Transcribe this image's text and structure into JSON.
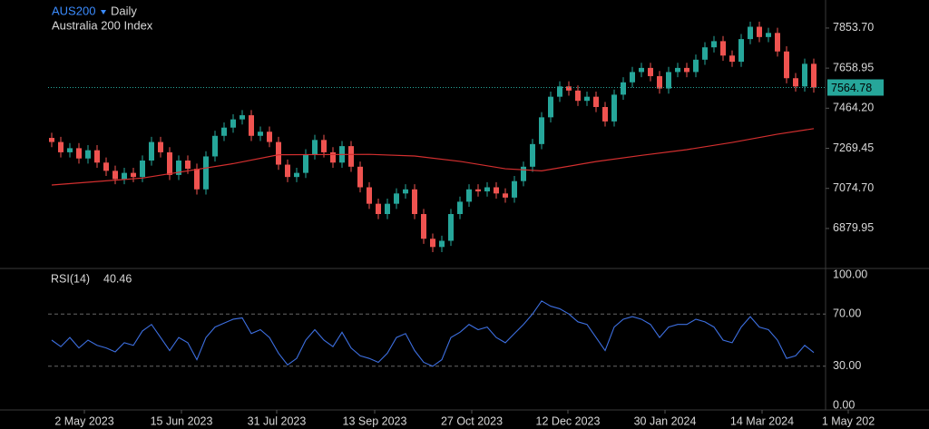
{
  "chart_data": [
    {
      "type": "candlestick",
      "title": "AUS200",
      "interval": "Daily",
      "subtitle": "Australia 200 Index",
      "xlim": [
        -0.4,
        84.8
      ],
      "xticks": [
        {
          "value": 3.6,
          "label": "2 May 2023"
        },
        {
          "value": 14.3,
          "label": "15 Jun 2023"
        },
        {
          "value": 24.8,
          "label": "31 Jul 2023"
        },
        {
          "value": 35.6,
          "label": "13 Sep 2023"
        },
        {
          "value": 46.3,
          "label": "27 Oct 2023"
        },
        {
          "value": 56.9,
          "label": "12 Dec 2023"
        },
        {
          "value": 67.6,
          "label": "30 Jan 2024"
        },
        {
          "value": 78.3,
          "label": "14 Mar 2024"
        },
        {
          "value": 87.8,
          "label": "1 May 202"
        }
      ],
      "ylim": [
        6690,
        7990
      ],
      "yticks": [
        {
          "value": 7853.7,
          "label": "7853.70"
        },
        7658.95,
        {
          "value": 7464.2,
          "label": "7464.20"
        },
        7269.45,
        {
          "value": 7074.7,
          "label": "7074.70"
        },
        6879.95
      ],
      "up_color": "#26a69a",
      "down_color": "#ef5350",
      "open": [
        7320,
        7300,
        7250,
        7270,
        7220,
        7260,
        7200,
        7160,
        7120,
        7150,
        7130,
        7210,
        7300,
        7250,
        7140,
        7210,
        7170,
        7070,
        7230,
        7330,
        7370,
        7410,
        7430,
        7330,
        7350,
        7300,
        7190,
        7130,
        7150,
        7240,
        7310,
        7250,
        7200,
        7280,
        7180,
        7080,
        7000,
        6950,
        7000,
        7050,
        7070,
        6950,
        6830,
        6790,
        6820,
        6950,
        7010,
        7070,
        7060,
        7080,
        7050,
        7030,
        7110,
        7180,
        7290,
        7420,
        7520,
        7570,
        7550,
        7500,
        7520,
        7470,
        7400,
        7530,
        7590,
        7640,
        7660,
        7620,
        7560,
        7640,
        7660,
        7640,
        7700,
        7760,
        7790,
        7720,
        7690,
        7800,
        7860,
        7810,
        7830,
        7740,
        7610,
        7570,
        7680
      ],
      "high": [
        7345,
        7325,
        7295,
        7295,
        7285,
        7285,
        7225,
        7185,
        7175,
        7175,
        7235,
        7325,
        7325,
        7275,
        7235,
        7235,
        7195,
        7255,
        7355,
        7395,
        7435,
        7455,
        7455,
        7375,
        7375,
        7325,
        7215,
        7175,
        7265,
        7335,
        7335,
        7275,
        7305,
        7305,
        7205,
        7105,
        7025,
        7025,
        7075,
        7095,
        7095,
        6975,
        6855,
        6845,
        6975,
        7035,
        7095,
        7095,
        7105,
        7105,
        7075,
        7135,
        7205,
        7315,
        7445,
        7545,
        7595,
        7595,
        7575,
        7545,
        7545,
        7495,
        7555,
        7615,
        7665,
        7685,
        7685,
        7645,
        7665,
        7685,
        7685,
        7725,
        7785,
        7815,
        7815,
        7745,
        7825,
        7885,
        7885,
        7855,
        7855,
        7765,
        7635,
        7705,
        7705
      ],
      "low": [
        7275,
        7225,
        7225,
        7195,
        7195,
        7175,
        7135,
        7095,
        7095,
        7105,
        7105,
        7185,
        7225,
        7115,
        7115,
        7145,
        7045,
        7045,
        7205,
        7305,
        7345,
        7385,
        7305,
        7305,
        7275,
        7165,
        7105,
        7105,
        7125,
        7215,
        7225,
        7175,
        7175,
        7155,
        7055,
        6975,
        6925,
        6925,
        6975,
        7025,
        6925,
        6805,
        6765,
        6765,
        6795,
        6925,
        6985,
        7035,
        7035,
        7025,
        7005,
        7005,
        7085,
        7155,
        7265,
        7395,
        7495,
        7525,
        7475,
        7475,
        7445,
        7375,
        7375,
        7505,
        7565,
        7615,
        7595,
        7535,
        7535,
        7615,
        7615,
        7615,
        7675,
        7735,
        7695,
        7665,
        7665,
        7775,
        7785,
        7785,
        7715,
        7585,
        7545,
        7545,
        7540
      ],
      "close": [
        7300,
        7250,
        7270,
        7220,
        7260,
        7200,
        7160,
        7120,
        7150,
        7130,
        7210,
        7300,
        7250,
        7140,
        7210,
        7170,
        7070,
        7230,
        7330,
        7370,
        7410,
        7430,
        7330,
        7350,
        7300,
        7190,
        7130,
        7150,
        7240,
        7310,
        7250,
        7200,
        7280,
        7180,
        7080,
        7000,
        6950,
        7000,
        7050,
        7070,
        6950,
        6830,
        6790,
        6820,
        6950,
        7010,
        7070,
        7060,
        7080,
        7050,
        7030,
        7110,
        7180,
        7290,
        7420,
        7520,
        7570,
        7550,
        7500,
        7520,
        7470,
        7400,
        7530,
        7590,
        7640,
        7660,
        7620,
        7560,
        7640,
        7660,
        7640,
        7700,
        7760,
        7790,
        7720,
        7690,
        7800,
        7860,
        7810,
        7830,
        7740,
        7610,
        7570,
        7680,
        7564.78
      ],
      "series": [
        {
          "color": "#d32f2f",
          "x": [
            0,
            10,
            20,
            25,
            35,
            40,
            45,
            50,
            54,
            60,
            65,
            70,
            75,
            80,
            84
          ],
          "values": [
            7091,
            7125,
            7195,
            7238,
            7240,
            7232,
            7206,
            7170,
            7160,
            7205,
            7235,
            7263,
            7298,
            7338,
            7365
          ]
        }
      ],
      "last_price_color": "#26a69a"
    },
    {
      "type": "line",
      "title": "RSI(14)",
      "ylim": [
        0,
        100
      ],
      "yticks": [
        {
          "value": 100,
          "label": "100.00"
        },
        {
          "value": 70,
          "label": "70.00"
        },
        {
          "value": 30,
          "label": "30.00"
        },
        {
          "value": 0,
          "label": "0.00"
        }
      ],
      "series": [
        {
          "color": "#3d6fe0",
          "values": [
            50,
            45,
            52,
            44,
            50,
            46,
            44,
            41,
            48,
            46,
            57,
            62,
            52,
            42,
            52,
            48,
            35,
            52,
            60,
            63,
            66,
            67,
            55,
            58,
            52,
            40,
            31,
            36,
            50,
            58,
            50,
            45,
            56,
            44,
            38,
            36,
            33,
            40,
            52,
            55,
            42,
            33,
            30,
            35,
            52,
            56,
            62,
            58,
            60,
            52,
            48,
            55,
            62,
            70,
            80,
            76,
            74,
            70,
            64,
            62,
            52,
            42,
            60,
            66,
            68,
            66,
            62,
            52,
            60,
            62,
            62,
            66,
            64,
            60,
            50,
            48,
            60,
            68,
            60,
            58,
            50,
            36,
            38,
            46,
            40.46
          ]
        }
      ]
    }
  ]
}
